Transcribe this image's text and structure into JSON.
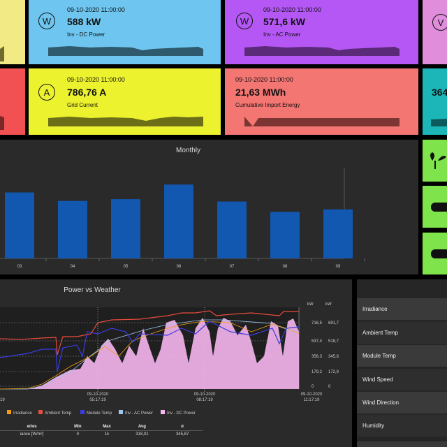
{
  "tiles": [
    {
      "id": "dc",
      "timestamp": "09-10-2020 11:00:00",
      "value": "588 kW",
      "label": "Inv - DC Power",
      "icon": "W",
      "color": "#6ec6f0"
    },
    {
      "id": "ac",
      "timestamp": "09-10-2020 11:00:00",
      "value": "571,6 kW",
      "label": "Inv - AC Power",
      "icon": "W",
      "color": "#b557f5"
    },
    {
      "id": "grid",
      "timestamp": "09-10-2020 11:00:00",
      "value": "786,76 A",
      "label": "Grid Current",
      "icon": "A",
      "color": "#ecf22e"
    },
    {
      "id": "energy",
      "timestamp": "09-10-2020 11:00:00",
      "value": "21,63 MWh",
      "label": "Cumulative Import Energy",
      "icon": "",
      "color": "#f47672"
    },
    {
      "id": "partial_v",
      "value": "V",
      "color": "#e08ddb"
    },
    {
      "id": "partial_364",
      "value": "364",
      "color": "#1cb6b8"
    }
  ],
  "monthly": {
    "title": "Monthly",
    "chart_data": {
      "type": "bar",
      "categories": [
        "03",
        "04",
        "05",
        "06",
        "07",
        "08",
        "09"
      ],
      "values": [
        5.45,
        4.75,
        4.9,
        6.1,
        4.7,
        3.85,
        4.05
      ],
      "ylim": [
        0,
        7.5
      ]
    }
  },
  "power_weather": {
    "title": "Power vs Weather",
    "y_unit_left": "kW",
    "y_unit_right": "kW",
    "ticks_left": [
      "716,5",
      "537,4",
      "358,3",
      "179,2",
      "0"
    ],
    "ticks_right": [
      "691,7",
      "518,7",
      "345,8",
      "172,9",
      "0"
    ],
    "x_labels": [
      {
        "date": "09-10-2020",
        "time": "05:17:19"
      },
      {
        "date": "09-10-2020",
        "time": "08:17:19"
      },
      {
        "date": "09-10-2020",
        "time": "11:17:19"
      }
    ],
    "legend": [
      {
        "name": "Irradiance",
        "color": "#f39c12"
      },
      {
        "name": "Ambient Temp",
        "color": "#e74c3c"
      },
      {
        "name": "Module Temp",
        "color": "#3a3de0"
      },
      {
        "name": "Inv - AC Power",
        "color": "#9ec9ef"
      },
      {
        "name": "Inv - DC Power",
        "color": "#f6b6ee"
      }
    ],
    "table": {
      "headers": [
        "eries",
        "Min",
        "Max",
        "Avg",
        "σ"
      ],
      "rows": [
        [
          "iance [W/m²]",
          "0",
          "1k",
          "318,01",
          "345,87"
        ]
      ]
    }
  },
  "side_list": [
    "Irradiance",
    "Ambient Temp",
    "Module Temp",
    "Wind Speed",
    "Wind Direction",
    "Humidity"
  ]
}
